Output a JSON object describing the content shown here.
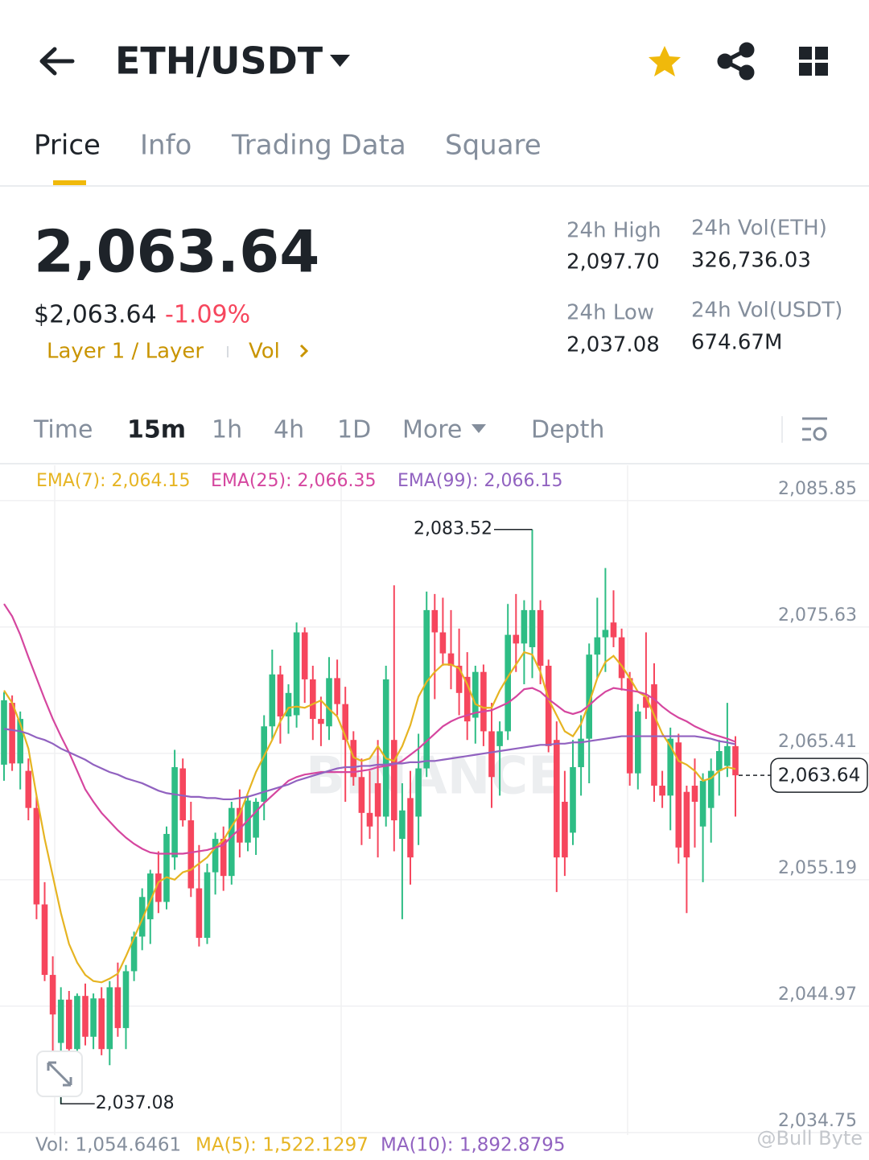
{
  "header": {
    "title": "ETH/USDT"
  },
  "tabs": [
    "Price",
    "Info",
    "Trading Data",
    "Square"
  ],
  "ticker": {
    "price": "2,063.64",
    "price_usd": "$2,063.64",
    "change": "-1.09%",
    "tags": [
      "Layer 1 / Layer",
      "Vol"
    ],
    "stats": [
      {
        "label": "24h High",
        "value": "2,097.70"
      },
      {
        "label": "24h Vol(ETH)",
        "value": "326,736.03"
      },
      {
        "label": "24h Low",
        "value": "2,037.08"
      },
      {
        "label": "24h Vol(USDT)",
        "value": "674.67M"
      }
    ]
  },
  "intervals": [
    "Time",
    "15m",
    "1h",
    "4h",
    "1D",
    "More",
    "Depth"
  ],
  "chart_data": {
    "type": "candlestick",
    "up_color": "#2ebd85",
    "down_color": "#f6465d",
    "ylim": [
      2034.55,
      2088.71
    ],
    "yticks": [
      {
        "value": 2085.85,
        "label": "2,085.85"
      },
      {
        "value": 2075.63,
        "label": "2,075.63"
      },
      {
        "value": 2065.41,
        "label": "2,065.41"
      },
      {
        "value": 2055.19,
        "label": "2,055.19"
      },
      {
        "value": 2044.97,
        "label": "2,044.97"
      },
      {
        "value": 2034.75,
        "label": "2,034.75"
      }
    ],
    "grid": true,
    "candles": [
      [
        2064.5,
        2070.36,
        2063.2,
        2069.71
      ],
      [
        2069.5,
        2070.1,
        2064.0,
        2064.6
      ],
      [
        2064.6,
        2068.8,
        2062.5,
        2068.2
      ],
      [
        2064.0,
        2065.0,
        2060.0,
        2061.0
      ],
      [
        2061.0,
        2062.0,
        2052.0,
        2053.2
      ],
      [
        2053.2,
        2055.0,
        2047.0,
        2047.5
      ],
      [
        2047.5,
        2049.0,
        2040.0,
        2044.3
      ],
      [
        2042.0,
        2046.5,
        2037.08,
        2045.5
      ],
      [
        2045.5,
        2046.2,
        2040.5,
        2041.5
      ],
      [
        2041.5,
        2046.0,
        2040.0,
        2045.8
      ],
      [
        2045.8,
        2046.8,
        2041.8,
        2042.5
      ],
      [
        2042.5,
        2046.0,
        2041.5,
        2045.6
      ],
      [
        2045.6,
        2046.5,
        2041.0,
        2041.5
      ],
      [
        2041.5,
        2047.0,
        2040.2,
        2046.5
      ],
      [
        2046.5,
        2048.5,
        2042.5,
        2043.2
      ],
      [
        2043.2,
        2048.3,
        2041.5,
        2047.8
      ],
      [
        2047.8,
        2051.0,
        2047.0,
        2050.6
      ],
      [
        2050.6,
        2054.5,
        2049.5,
        2053.8
      ],
      [
        2052.0,
        2056.0,
        2050.0,
        2055.7
      ],
      [
        2055.7,
        2057.5,
        2052.5,
        2053.4
      ],
      [
        2053.4,
        2059.5,
        2052.8,
        2058.9
      ],
      [
        2057.0,
        2065.7,
        2056.0,
        2064.3
      ],
      [
        2064.2,
        2065.0,
        2059.5,
        2060.0
      ],
      [
        2060.0,
        2061.5,
        2053.8,
        2054.5
      ],
      [
        2054.5,
        2058.0,
        2049.8,
        2050.5
      ],
      [
        2050.5,
        2056.5,
        2050.0,
        2055.8
      ],
      [
        2055.8,
        2059.0,
        2054.0,
        2058.5
      ],
      [
        2058.5,
        2059.5,
        2054.3,
        2055.5
      ],
      [
        2055.5,
        2061.5,
        2054.8,
        2061.0
      ],
      [
        2061.0,
        2062.5,
        2057.0,
        2058.2
      ],
      [
        2058.2,
        2062.0,
        2057.5,
        2061.6
      ],
      [
        2058.6,
        2061.8,
        2057.2,
        2061.5
      ],
      [
        2061.5,
        2068.5,
        2060.0,
        2067.6
      ],
      [
        2067.6,
        2073.8,
        2066.5,
        2071.8
      ],
      [
        2071.8,
        2072.5,
        2066.2,
        2068.4
      ],
      [
        2068.4,
        2071.0,
        2067.0,
        2070.3
      ],
      [
        2068.5,
        2076.0,
        2067.5,
        2075.2
      ],
      [
        2075.2,
        2075.6,
        2069.5,
        2071.4
      ],
      [
        2071.4,
        2072.5,
        2066.5,
        2068.2
      ],
      [
        2068.2,
        2070.0,
        2066.0,
        2067.8
      ],
      [
        2067.6,
        2073.2,
        2066.5,
        2071.5
      ],
      [
        2071.5,
        2073.0,
        2068.5,
        2069.4
      ],
      [
        2069.4,
        2070.8,
        2061.5,
        2066.5
      ],
      [
        2066.5,
        2067.2,
        2062.8,
        2063.5
      ],
      [
        2063.5,
        2065.0,
        2058.0,
        2060.6
      ],
      [
        2060.6,
        2064.0,
        2058.5,
        2059.5
      ],
      [
        2063.0,
        2066.5,
        2057.0,
        2060.3
      ],
      [
        2060.3,
        2072.5,
        2059.5,
        2071.4
      ],
      [
        2066.5,
        2079.0,
        2057.5,
        2060.0
      ],
      [
        2058.5,
        2063.0,
        2052.0,
        2060.8
      ],
      [
        2061.8,
        2064.0,
        2054.8,
        2057.0
      ],
      [
        2060.3,
        2067.0,
        2058.0,
        2064.2
      ],
      [
        2064.2,
        2078.5,
        2063.5,
        2077.0
      ],
      [
        2077.0,
        2078.3,
        2069.8,
        2075.2
      ],
      [
        2075.2,
        2078.0,
        2072.5,
        2073.5
      ],
      [
        2073.5,
        2077.0,
        2070.6,
        2072.5
      ],
      [
        2072.5,
        2075.5,
        2068.5,
        2070.3
      ],
      [
        2071.6,
        2073.6,
        2066.5,
        2068.0
      ],
      [
        2068.3,
        2072.5,
        2066.2,
        2072.0
      ],
      [
        2072.0,
        2072.6,
        2066.0,
        2067.2
      ],
      [
        2067.2,
        2069.5,
        2061.0,
        2063.5
      ],
      [
        2066.0,
        2068.0,
        2062.0,
        2067.2
      ],
      [
        2067.2,
        2077.5,
        2066.5,
        2075.0
      ],
      [
        2075.0,
        2078.3,
        2072.0,
        2074.3
      ],
      [
        2074.3,
        2077.8,
        2071.0,
        2077.0
      ],
      [
        2074.0,
        2083.52,
        2071.5,
        2077.0
      ],
      [
        2077.0,
        2077.8,
        2071.0,
        2072.5
      ],
      [
        2072.5,
        2073.0,
        2065.5,
        2066.0
      ],
      [
        2066.5,
        2068.0,
        2054.2,
        2057.0
      ],
      [
        2061.5,
        2064.0,
        2055.5,
        2057.0
      ],
      [
        2059.0,
        2066.5,
        2058.0,
        2064.3
      ],
      [
        2064.3,
        2068.5,
        2062.0,
        2066.6
      ],
      [
        2066.6,
        2074.3,
        2063.0,
        2073.4
      ],
      [
        2073.4,
        2078.0,
        2071.5,
        2074.8
      ],
      [
        2074.8,
        2080.4,
        2072.0,
        2075.4
      ],
      [
        2076.0,
        2078.6,
        2074.0,
        2074.8
      ],
      [
        2074.8,
        2075.5,
        2070.5,
        2071.5
      ],
      [
        2071.5,
        2072.0,
        2062.8,
        2063.8
      ],
      [
        2063.8,
        2069.4,
        2062.5,
        2068.8
      ],
      [
        2070.0,
        2075.2,
        2068.2,
        2069.1
      ],
      [
        2071.0,
        2072.7,
        2061.5,
        2062.8
      ],
      [
        2062.8,
        2064.0,
        2061.0,
        2062.0
      ],
      [
        2062.0,
        2067.5,
        2059.2,
        2066.6
      ],
      [
        2066.3,
        2067.0,
        2056.5,
        2057.8
      ],
      [
        2062.3,
        2062.8,
        2052.5,
        2057.0
      ],
      [
        2062.8,
        2065.0,
        2057.8,
        2061.5
      ],
      [
        2059.5,
        2063.8,
        2055.0,
        2063.2
      ],
      [
        2061.0,
        2065.0,
        2058.2,
        2064.0
      ],
      [
        2064.0,
        2066.5,
        2062.0,
        2065.6
      ],
      [
        2064.4,
        2069.5,
        2063.5,
        2066.0
      ],
      [
        2066.0,
        2066.8,
        2060.3,
        2063.64
      ]
    ],
    "series": [
      {
        "name": "EMA(7): 2,064.15",
        "color": "#e6b422",
        "values": [
          2070.5,
          2069.5,
          2067.8,
          2065.8,
          2062.0,
          2058.5,
          2055.5,
          2052.5,
          2050.0,
          2048.5,
          2047.5,
          2047.0,
          2046.9,
          2047.2,
          2047.6,
          2049.0,
          2050.5,
          2052.0,
          2053.5,
          2055.0,
          2055.4,
          2055.2,
          2055.8,
          2056.0,
          2056.5,
          2057.0,
          2057.8,
          2058.4,
          2059.5,
          2060.5,
          2062.2,
          2063.9,
          2065.2,
          2066.5,
          2068.0,
          2069.1,
          2069.2,
          2069.1,
          2069.4,
          2069.7,
          2069.0,
          2068.4,
          2066.8,
          2065.1,
          2064.8,
          2065.0,
          2066.0,
          2065.0,
          2064.8,
          2066.0,
          2067.7,
          2070.0,
          2071.2,
          2072.0,
          2072.6,
          2072.6,
          2072.3,
          2071.0,
          2069.4,
          2069.1,
          2069.1,
          2070.5,
          2071.6,
          2072.6,
          2073.6,
          2073.4,
          2072.0,
          2069.8,
          2068.5,
          2067.2,
          2066.8,
          2067.8,
          2069.5,
          2071.5,
          2072.8,
          2073.3,
          2072.5,
          2071.5,
          2070.4,
          2070.0,
          2068.5,
          2067.0,
          2066.0,
          2064.8,
          2064.5,
          2064.0,
          2063.2,
          2063.4,
          2064.0,
          2064.3,
          2064.15
        ]
      },
      {
        "name": "EMA(25): 2,066.35",
        "color": "#d5469f",
        "values": [
          2077.5,
          2076.5,
          2075.0,
          2073.2,
          2071.5,
          2069.8,
          2068.2,
          2066.8,
          2065.5,
          2064.0,
          2062.5,
          2061.5,
          2060.6,
          2059.9,
          2059.2,
          2058.6,
          2058.1,
          2057.7,
          2057.4,
          2057.3,
          2057.3,
          2057.3,
          2057.3,
          2057.4,
          2057.5,
          2057.6,
          2057.8,
          2058.0,
          2058.7,
          2059.3,
          2060.0,
          2060.7,
          2061.4,
          2062.0,
          2062.6,
          2063.2,
          2063.5,
          2063.7,
          2063.8,
          2063.9,
          2063.9,
          2063.9,
          2063.9,
          2063.9,
          2064.0,
          2064.1,
          2064.3,
          2064.4,
          2064.5,
          2064.8,
          2065.3,
          2065.8,
          2066.4,
          2067.0,
          2067.6,
          2068.0,
          2068.3,
          2068.5,
          2068.7,
          2068.8,
          2068.9,
          2069.2,
          2069.5,
          2070.0,
          2070.6,
          2070.7,
          2070.4,
          2069.8,
          2069.3,
          2068.8,
          2068.6,
          2068.8,
          2069.3,
          2069.9,
          2070.4,
          2070.7,
          2070.6,
          2070.5,
          2070.4,
          2070.2,
          2069.8,
          2069.2,
          2068.7,
          2068.3,
          2068.0,
          2067.6,
          2067.3,
          2067.0,
          2066.8,
          2066.6,
          2066.35
        ]
      },
      {
        "name": "EMA(99): 2,066.15",
        "color": "#9162c0",
        "values": [
          2067.4,
          2067.3,
          2067.2,
          2067.0,
          2066.7,
          2066.5,
          2066.2,
          2065.8,
          2065.5,
          2065.2,
          2064.9,
          2064.5,
          2064.2,
          2063.9,
          2063.7,
          2063.4,
          2063.2,
          2063.0,
          2062.7,
          2062.4,
          2062.2,
          2062.1,
          2062.0,
          2061.9,
          2061.9,
          2061.8,
          2061.8,
          2061.7,
          2061.7,
          2061.8,
          2061.9,
          2062.1,
          2062.3,
          2062.5,
          2062.7,
          2062.9,
          2063.2,
          2063.4,
          2063.6,
          2063.8,
          2064.0,
          2064.2,
          2064.3,
          2064.3,
          2064.4,
          2064.4,
          2064.5,
          2064.5,
          2064.6,
          2064.6,
          2064.7,
          2064.7,
          2064.8,
          2064.8,
          2064.9,
          2065.0,
          2065.1,
          2065.2,
          2065.3,
          2065.4,
          2065.5,
          2065.6,
          2065.7,
          2065.8,
          2065.9,
          2066.0,
          2066.1,
          2066.1,
          2066.2,
          2066.2,
          2066.3,
          2066.3,
          2066.4,
          2066.5,
          2066.6,
          2066.7,
          2066.8,
          2066.8,
          2066.8,
          2066.8,
          2066.8,
          2066.8,
          2066.8,
          2066.8,
          2066.8,
          2066.8,
          2066.7,
          2066.6,
          2066.4,
          2066.3,
          2066.15
        ]
      }
    ],
    "high_label": "2,083.52",
    "low_label": "2,037.08",
    "last_price": {
      "value": 2063.64,
      "label": "2,063.64"
    },
    "watermark": "BINANCE"
  },
  "volume_panel": {
    "vol": "Vol: 1,054.6461",
    "ma5": "MA(5): 1,522.1297",
    "ma10": "MA(10): 1,892.8795"
  },
  "credit": "@Bull Byte"
}
